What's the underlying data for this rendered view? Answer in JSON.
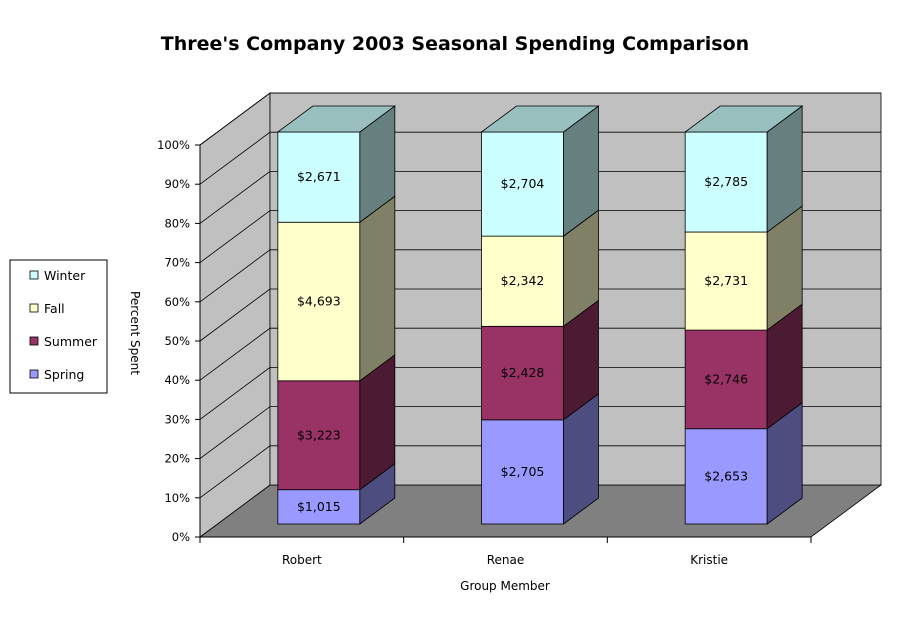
{
  "chart_data": {
    "type": "bar",
    "stacking": "percent",
    "title": "Three's Company 2003 Seasonal Spending Comparison",
    "xlabel": "Group Member",
    "ylabel": "Percent Spent",
    "categories": [
      "Robert",
      "Renae",
      "Kristie"
    ],
    "yticks": [
      "0%",
      "10%",
      "20%",
      "30%",
      "40%",
      "50%",
      "60%",
      "70%",
      "80%",
      "90%",
      "100%"
    ],
    "ylim": [
      0,
      100
    ],
    "grid": true,
    "legend": "left",
    "series": [
      {
        "name": "Spring",
        "color": "#9999ff",
        "values": [
          1015,
          2705,
          2653
        ],
        "labels": [
          "$1,015",
          "$2,705",
          "$2,653"
        ]
      },
      {
        "name": "Summer",
        "color": "#993366",
        "values": [
          3223,
          2428,
          2746
        ],
        "labels": [
          "$3,223",
          "$2,428",
          "$2,746"
        ]
      },
      {
        "name": "Fall",
        "color": "#ffffcc",
        "values": [
          4693,
          2342,
          2731
        ],
        "labels": [
          "$4,693",
          "$2,342",
          "$2,731"
        ]
      },
      {
        "name": "Winter",
        "color": "#ccffff",
        "values": [
          2671,
          2704,
          2785
        ],
        "labels": [
          "$2,671",
          "$2,704",
          "$2,785"
        ]
      }
    ],
    "legend_order": [
      "Winter",
      "Fall",
      "Summer",
      "Spring"
    ]
  }
}
